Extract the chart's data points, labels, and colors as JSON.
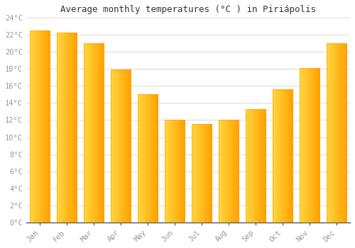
{
  "months": [
    "Jan",
    "Feb",
    "Mar",
    "Apr",
    "May",
    "Jun",
    "Jul",
    "Aug",
    "Sep",
    "Oct",
    "Nov",
    "Dec"
  ],
  "temperatures": [
    22.5,
    22.3,
    21.0,
    17.9,
    15.0,
    12.0,
    11.5,
    12.0,
    13.3,
    15.6,
    18.1,
    21.0
  ],
  "title": "Average monthly temperatures (°C ) in Piriápolis",
  "ylim": [
    0,
    24
  ],
  "ytick_step": 2,
  "background_color": "#FFFFFF",
  "plot_bg_color": "#FFFFFF",
  "grid_color": "#DDDDDD",
  "bar_left_color": "#FFD740",
  "bar_right_color": "#FFA000",
  "bar_edge_color": "#E65100",
  "tick_color": "#999999",
  "title_color": "#333333",
  "font_family": "monospace"
}
